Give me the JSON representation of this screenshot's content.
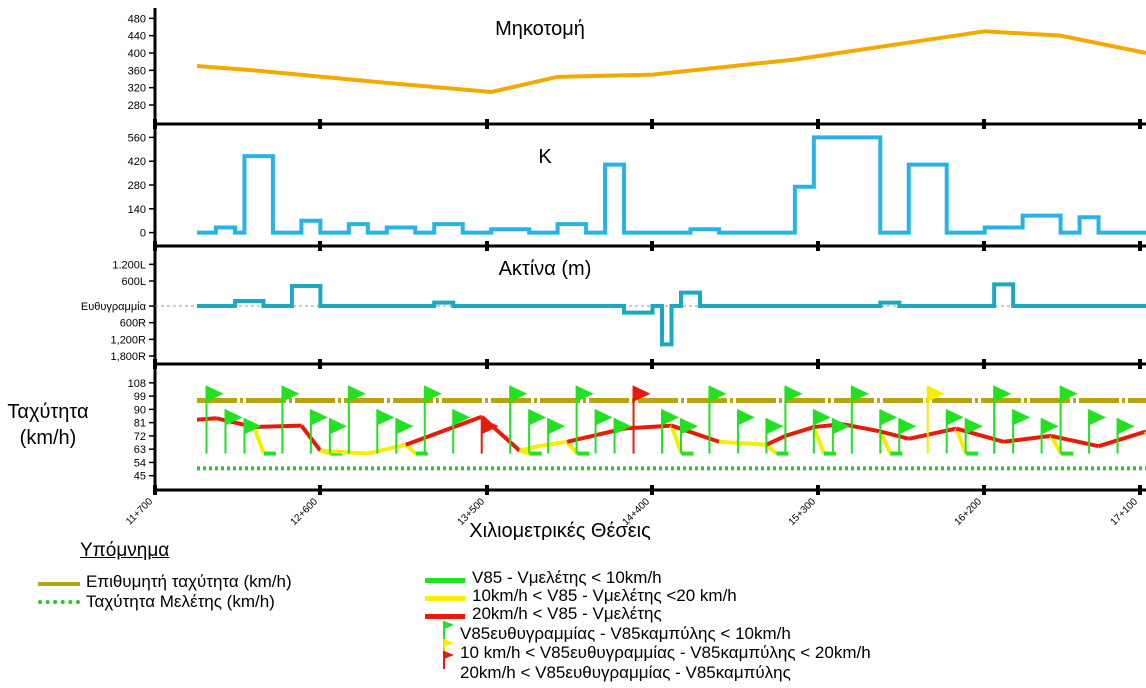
{
  "colors": {
    "profile": "#f2a900",
    "k": "#27b3e6",
    "radius": "#1ba9bd",
    "desired": "#b7a314",
    "design": "#2dc42d",
    "green": "#22e022",
    "yellow": "#f5ee00",
    "red": "#e81b0b"
  },
  "xaxis": {
    "label": "Χιλιομετρικές Θέσεις",
    "ticks": [
      "11+700",
      "12+600",
      "13+500",
      "14+400",
      "15+300",
      "16+200",
      "17+100"
    ]
  },
  "chart_data": [
    {
      "id": "profile",
      "type": "line",
      "title": "Μηκοτομή",
      "y_ticks": [
        480,
        440,
        400,
        360,
        320,
        280
      ],
      "ylim": [
        250,
        490
      ],
      "x": [
        0.0,
        0.06,
        0.18,
        0.31,
        0.38,
        0.48,
        0.63,
        0.83,
        0.91,
        1.0
      ],
      "values": [
        370,
        360,
        335,
        310,
        345,
        350,
        385,
        450,
        440,
        400
      ]
    },
    {
      "id": "k",
      "type": "line",
      "title": "Κ",
      "y_ticks": [
        560,
        420,
        280,
        140,
        0
      ],
      "ylim": [
        -20,
        580
      ],
      "steps": [
        [
          0,
          0
        ],
        [
          0.02,
          30
        ],
        [
          0.04,
          0
        ],
        [
          0.05,
          450
        ],
        [
          0.08,
          0
        ],
        [
          0.11,
          70
        ],
        [
          0.13,
          0
        ],
        [
          0.16,
          50
        ],
        [
          0.18,
          0
        ],
        [
          0.2,
          30
        ],
        [
          0.23,
          0
        ],
        [
          0.25,
          50
        ],
        [
          0.28,
          0
        ],
        [
          0.31,
          20
        ],
        [
          0.35,
          0
        ],
        [
          0.38,
          50
        ],
        [
          0.41,
          0
        ],
        [
          0.43,
          400
        ],
        [
          0.45,
          0
        ],
        [
          0.52,
          20
        ],
        [
          0.55,
          0
        ],
        [
          0.63,
          270
        ],
        [
          0.65,
          560
        ],
        [
          0.72,
          0
        ],
        [
          0.75,
          400
        ],
        [
          0.79,
          0
        ],
        [
          0.83,
          30
        ],
        [
          0.87,
          100
        ],
        [
          0.91,
          0
        ],
        [
          0.93,
          90
        ],
        [
          0.95,
          0
        ],
        [
          1.0,
          0
        ]
      ]
    },
    {
      "id": "radius",
      "type": "line",
      "title": "Ακτίνα (m)",
      "y_ticks": [
        "1.200L",
        "600L",
        "Ευθυγραμμία",
        "600R",
        "1,200R",
        "1,800R"
      ],
      "ylim": [
        -3,
        3
      ],
      "steps": [
        [
          0,
          0
        ],
        [
          0.04,
          0.3
        ],
        [
          0.07,
          0
        ],
        [
          0.1,
          1.2
        ],
        [
          0.13,
          0
        ],
        [
          0.25,
          0.2
        ],
        [
          0.27,
          0
        ],
        [
          0.45,
          -0.4
        ],
        [
          0.48,
          0
        ],
        [
          0.49,
          -2.3
        ],
        [
          0.5,
          0
        ],
        [
          0.51,
          0.8
        ],
        [
          0.53,
          0
        ],
        [
          0.72,
          0.2
        ],
        [
          0.74,
          0
        ],
        [
          0.84,
          1.3
        ],
        [
          0.86,
          0
        ],
        [
          1.0,
          0
        ]
      ]
    },
    {
      "id": "speed",
      "type": "line",
      "title": "Ταχύτητα (km/h)",
      "y_ticks": [
        108,
        99,
        90,
        81,
        72,
        63,
        54,
        45
      ],
      "ylim": [
        38,
        114
      ],
      "series": [
        {
          "name": "Επιθυμητή ταχύτητα (km/h)",
          "x": [
            0,
            1
          ],
          "values": [
            96,
            96
          ]
        },
        {
          "name": "Ταχύτητα Μελέτης (km/h)",
          "x": [
            0,
            1
          ],
          "values": [
            50,
            50
          ]
        },
        {
          "name": "V85",
          "x": [
            0.0,
            0.02,
            0.06,
            0.11,
            0.13,
            0.18,
            0.22,
            0.3,
            0.34,
            0.36,
            0.39,
            0.45,
            0.5,
            0.55,
            0.6,
            0.62,
            0.65,
            0.68,
            0.72,
            0.75,
            0.8,
            0.85,
            0.9,
            0.95,
            1.0
          ],
          "values": [
            83,
            84,
            78,
            79,
            62,
            60,
            66,
            85,
            62,
            65,
            68,
            77,
            79,
            68,
            66,
            72,
            78,
            80,
            75,
            70,
            77,
            68,
            72,
            65,
            75
          ]
        }
      ]
    }
  ],
  "legend": {
    "title": "Υπόμνημα",
    "items": [
      "Επιθυμητή ταχύτητα (km/h)",
      "Ταχύτητα Μελέτης (km/h)",
      "V85 - Vμελέτης < 10km/h",
      "10km/h < V85 - Vμελέτης <20 km/h",
      "20km/h < V85 - Vμελέτης",
      "V85ευθυγραμμίας - V85καμπύλης < 10km/h",
      "10 km/h < V85ευθυγραμμίας - V85καμπύλης < 20km/h",
      "20km/h < V85ευθυγραμμίας - V85καμπύλης"
    ]
  }
}
